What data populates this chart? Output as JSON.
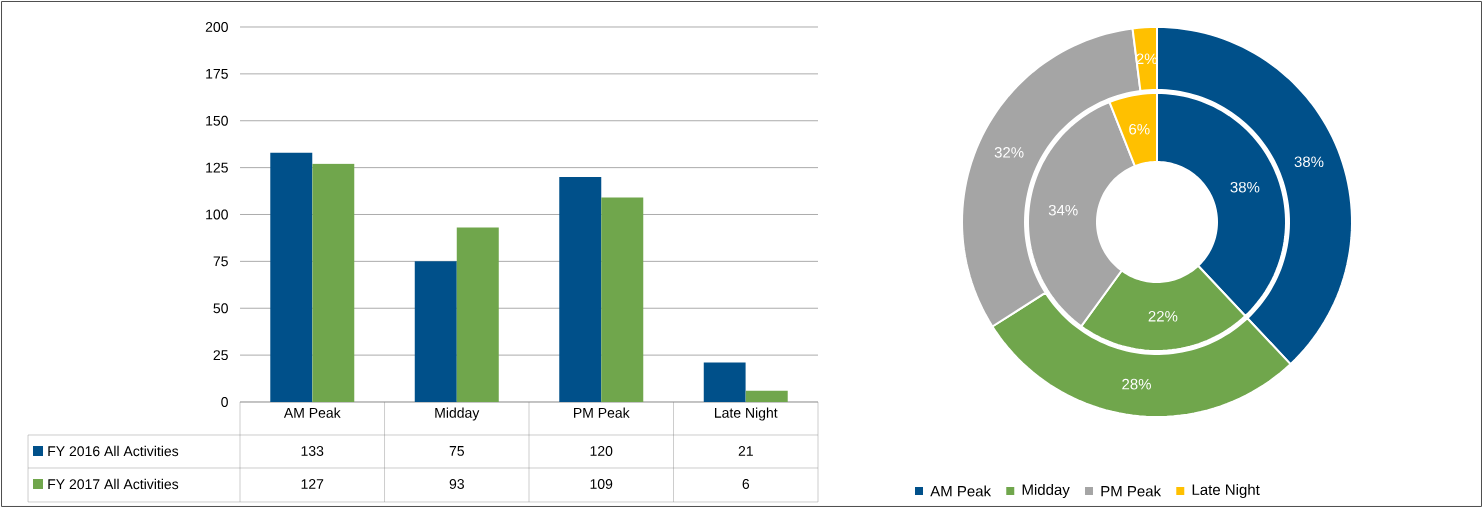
{
  "chart_data": [
    {
      "type": "bar",
      "categories": [
        "AM Peak",
        "Midday",
        "PM Peak",
        "Late Night"
      ],
      "series": [
        {
          "name": "FY 2016 All Activities",
          "color": "#00508a",
          "values": [
            133,
            75,
            120,
            21
          ]
        },
        {
          "name": "FY 2017 All Activities",
          "color": "#70a64c",
          "values": [
            127,
            93,
            109,
            6
          ]
        }
      ],
      "ylim": [
        0,
        200
      ],
      "yticks": [
        0,
        25,
        50,
        75,
        100,
        125,
        150,
        175,
        200
      ],
      "grid": "y",
      "data_labels": true,
      "legend": "bottom"
    },
    {
      "type": "donut",
      "categories": [
        "AM Peak",
        "Midday",
        "PM Peak",
        "Late Night"
      ],
      "colors": [
        "#00508a",
        "#70a64c",
        "#a5a5a5",
        "#ffc000"
      ],
      "series": [
        {
          "values": [
            38,
            22,
            34,
            6
          ],
          "value_labels": [
            "38%",
            "22%",
            "34%",
            "6%"
          ]
        },
        {
          "values": [
            38,
            28,
            32,
            2
          ],
          "value_labels": [
            "38%",
            "28%",
            "32%",
            "2%"
          ]
        }
      ],
      "legend": "bottom"
    }
  ]
}
